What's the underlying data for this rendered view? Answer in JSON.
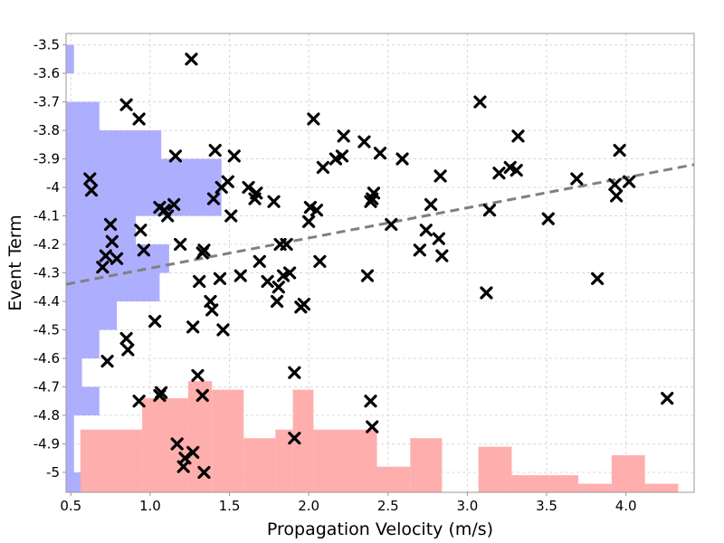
{
  "chart_data": {
    "type": "scatter",
    "title": "",
    "xlabel": "Propagation Velocity (m/s)",
    "ylabel": "Event Term",
    "xlim": [
      0.47,
      4.43
    ],
    "ylim": [
      -5.07,
      -3.46
    ],
    "x_ticks": [
      0.5,
      1.0,
      1.5,
      2.0,
      2.5,
      3.0,
      3.5,
      4.0
    ],
    "x_tick_labels": [
      "0.5",
      "1.0",
      "1.5",
      "2.0",
      "2.5",
      "3.0",
      "3.5",
      "4.0"
    ],
    "y_ticks": [
      -3.5,
      -3.6,
      -3.7,
      -3.8,
      -3.9,
      -4.0,
      -4.1,
      -4.2,
      -4.3,
      -4.4,
      -4.5,
      -4.6,
      -4.7,
      -4.8,
      -4.9,
      -5.0
    ],
    "y_tick_labels": [
      "-3.5",
      "-3.6",
      "-3.7",
      "-3.8",
      "-3.9",
      "-4",
      "-4.1",
      "-4.2",
      "-4.3",
      "-4.4",
      "-4.5",
      "-4.6",
      "-4.7",
      "-4.8",
      "-4.9",
      "-5"
    ],
    "grid": true,
    "colors": {
      "points": "#000000",
      "trend": "#808080",
      "y_hist": "#aaaaff",
      "x_hist": "#ffaaaa",
      "grid": "#d8d8d8",
      "frame": "#999999"
    },
    "points": {
      "x": [
        0.62,
        0.63,
        0.7,
        0.72,
        0.75,
        0.76,
        0.79,
        0.73,
        0.85,
        0.85,
        0.86,
        0.93,
        0.93,
        0.94,
        0.96,
        1.03,
        1.06,
        1.09,
        1.11,
        1.15,
        1.16,
        1.19,
        1.26,
        1.27,
        1.3,
        1.31,
        1.33,
        1.34,
        1.38,
        1.39,
        1.4,
        1.41,
        1.44,
        1.45,
        1.46,
        1.49,
        1.51,
        1.53,
        1.57,
        1.62,
        1.66,
        1.67,
        1.69,
        1.74,
        1.78,
        1.8,
        1.81,
        1.82,
        1.84,
        1.86,
        1.88,
        1.91,
        1.95,
        1.97,
        2.0,
        2.01,
        2.03,
        2.05,
        2.07,
        2.09,
        2.17,
        2.21,
        2.22,
        2.35,
        2.37,
        2.39,
        2.4,
        2.4,
        2.41,
        2.45,
        2.52,
        2.59,
        2.7,
        2.74,
        2.77,
        2.82,
        2.83,
        2.84,
        3.08,
        3.12,
        3.14,
        3.2,
        3.27,
        3.31,
        3.32,
        3.51,
        3.69,
        3.82,
        3.93,
        3.94,
        3.96,
        4.02,
        4.26,
        1.06,
        1.07,
        1.17,
        1.21,
        1.34,
        1.91,
        2.39,
        1.27,
        1.22,
        1.33
      ],
      "y": [
        -3.97,
        -4.01,
        -4.28,
        -4.24,
        -4.13,
        -4.19,
        -4.25,
        -4.61,
        -3.71,
        -4.53,
        -4.57,
        -3.76,
        -4.75,
        -4.15,
        -4.22,
        -4.47,
        -4.07,
        -4.08,
        -4.1,
        -4.06,
        -3.89,
        -4.2,
        -3.55,
        -4.49,
        -4.66,
        -4.33,
        -4.23,
        -4.22,
        -4.4,
        -4.43,
        -4.04,
        -3.87,
        -4.32,
        -4.0,
        -4.5,
        -3.98,
        -4.1,
        -3.89,
        -4.31,
        -4.0,
        -4.04,
        -4.02,
        -4.26,
        -4.33,
        -4.05,
        -4.4,
        -4.35,
        -4.2,
        -4.31,
        -4.2,
        -4.3,
        -4.65,
        -4.42,
        -4.41,
        -4.12,
        -4.07,
        -3.76,
        -4.08,
        -4.26,
        -3.93,
        -3.9,
        -3.89,
        -3.82,
        -3.84,
        -4.31,
        -4.05,
        -4.04,
        -4.84,
        -4.02,
        -3.88,
        -4.13,
        -3.9,
        -4.22,
        -4.15,
        -4.06,
        -4.18,
        -3.96,
        -4.24,
        -3.7,
        -4.37,
        -4.08,
        -3.95,
        -3.93,
        -3.94,
        -3.82,
        -4.11,
        -3.97,
        -4.32,
        -3.99,
        -4.03,
        -3.87,
        -3.98,
        -4.74,
        -4.73,
        -4.72,
        -4.9,
        -4.98,
        -5.0,
        -4.88,
        -4.75,
        -4.93,
        -4.95,
        -4.73
      ],
      "marker": "x"
    },
    "trend_line": {
      "style": "dashed",
      "x": [
        0.47,
        4.43
      ],
      "y": [
        -4.34,
        -3.92
      ]
    },
    "y_histogram": {
      "orientation": "horizontal",
      "bins": [
        {
          "from": -3.6,
          "to": -3.5,
          "value": 0.52
        },
        {
          "from": -3.8,
          "to": -3.7,
          "value": 0.68
        },
        {
          "from": -3.9,
          "to": -3.8,
          "value": 1.07
        },
        {
          "from": -4.1,
          "to": -3.9,
          "value": 1.45
        },
        {
          "from": -4.2,
          "to": -4.1,
          "value": 0.91
        },
        {
          "from": -4.3,
          "to": -4.2,
          "value": 1.12
        },
        {
          "from": -4.4,
          "to": -4.3,
          "value": 1.06
        },
        {
          "from": -4.5,
          "to": -4.4,
          "value": 0.79
        },
        {
          "from": -4.6,
          "to": -4.5,
          "value": 0.68
        },
        {
          "from": -4.7,
          "to": -4.6,
          "value": 0.57
        },
        {
          "from": -4.8,
          "to": -4.7,
          "value": 0.68
        },
        {
          "from": -5.0,
          "to": -4.8,
          "value": 0.52
        },
        {
          "from": -5.07,
          "to": -5.0,
          "value": 0.57
        }
      ]
    },
    "x_histogram": {
      "orientation": "vertical",
      "bins": [
        {
          "from": 0.56,
          "to": 0.95,
          "value": -4.85
        },
        {
          "from": 0.95,
          "to": 1.24,
          "value": -4.74
        },
        {
          "from": 1.24,
          "to": 1.39,
          "value": -4.68
        },
        {
          "from": 1.39,
          "to": 1.59,
          "value": -4.71
        },
        {
          "from": 1.59,
          "to": 1.79,
          "value": -4.88
        },
        {
          "from": 1.79,
          "to": 1.9,
          "value": -4.85
        },
        {
          "from": 1.9,
          "to": 2.03,
          "value": -4.71
        },
        {
          "from": 2.03,
          "to": 2.43,
          "value": -4.85
        },
        {
          "from": 2.43,
          "to": 2.64,
          "value": -4.98
        },
        {
          "from": 2.64,
          "to": 2.84,
          "value": -4.88
        },
        {
          "from": 3.07,
          "to": 3.28,
          "value": -4.91
        },
        {
          "from": 3.28,
          "to": 3.7,
          "value": -5.01
        },
        {
          "from": 3.7,
          "to": 3.91,
          "value": -5.04
        },
        {
          "from": 3.91,
          "to": 4.12,
          "value": -4.94
        },
        {
          "from": 4.12,
          "to": 4.33,
          "value": -5.04
        }
      ]
    }
  }
}
